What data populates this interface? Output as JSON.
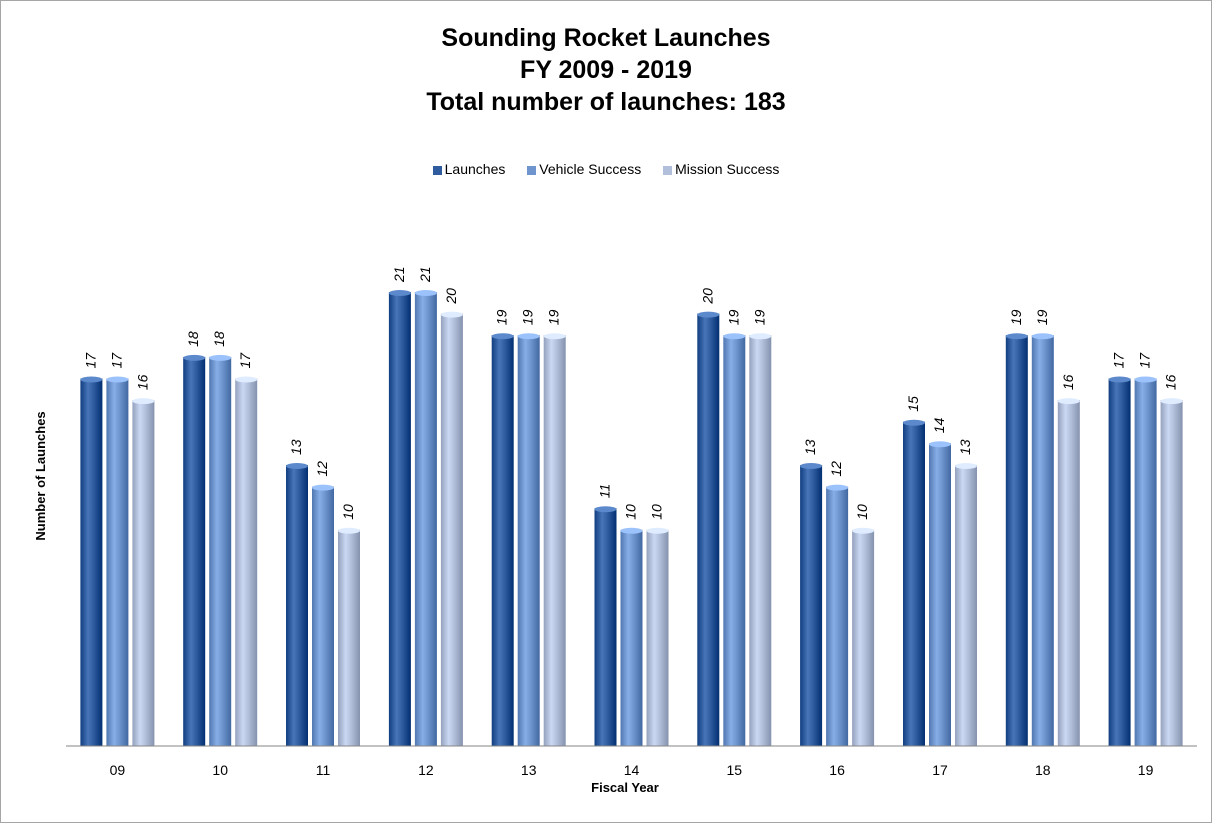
{
  "chart_data": {
    "type": "bar",
    "title": [
      "Sounding Rocket Launches",
      "FY 2009 - 2019",
      "Total number of launches: 183"
    ],
    "xlabel": "Fiscal Year",
    "ylabel": "Number of Launches",
    "categories": [
      "09",
      "10",
      "11",
      "12",
      "13",
      "14",
      "15",
      "16",
      "17",
      "18",
      "19"
    ],
    "series": [
      {
        "name": "Launches",
        "color": "#2e5c9e",
        "values": [
          17,
          18,
          13,
          21,
          19,
          11,
          20,
          13,
          15,
          19,
          17
        ]
      },
      {
        "name": "Vehicle Success",
        "color": "#6f95cf",
        "values": [
          17,
          18,
          12,
          21,
          19,
          10,
          19,
          12,
          14,
          19,
          17
        ]
      },
      {
        "name": "Mission Success",
        "color": "#b2bfdb",
        "values": [
          16,
          17,
          10,
          20,
          19,
          10,
          19,
          10,
          13,
          16,
          16
        ]
      }
    ],
    "ylim": [
      0,
      21
    ],
    "legend_position": "top-center",
    "grid": false
  }
}
